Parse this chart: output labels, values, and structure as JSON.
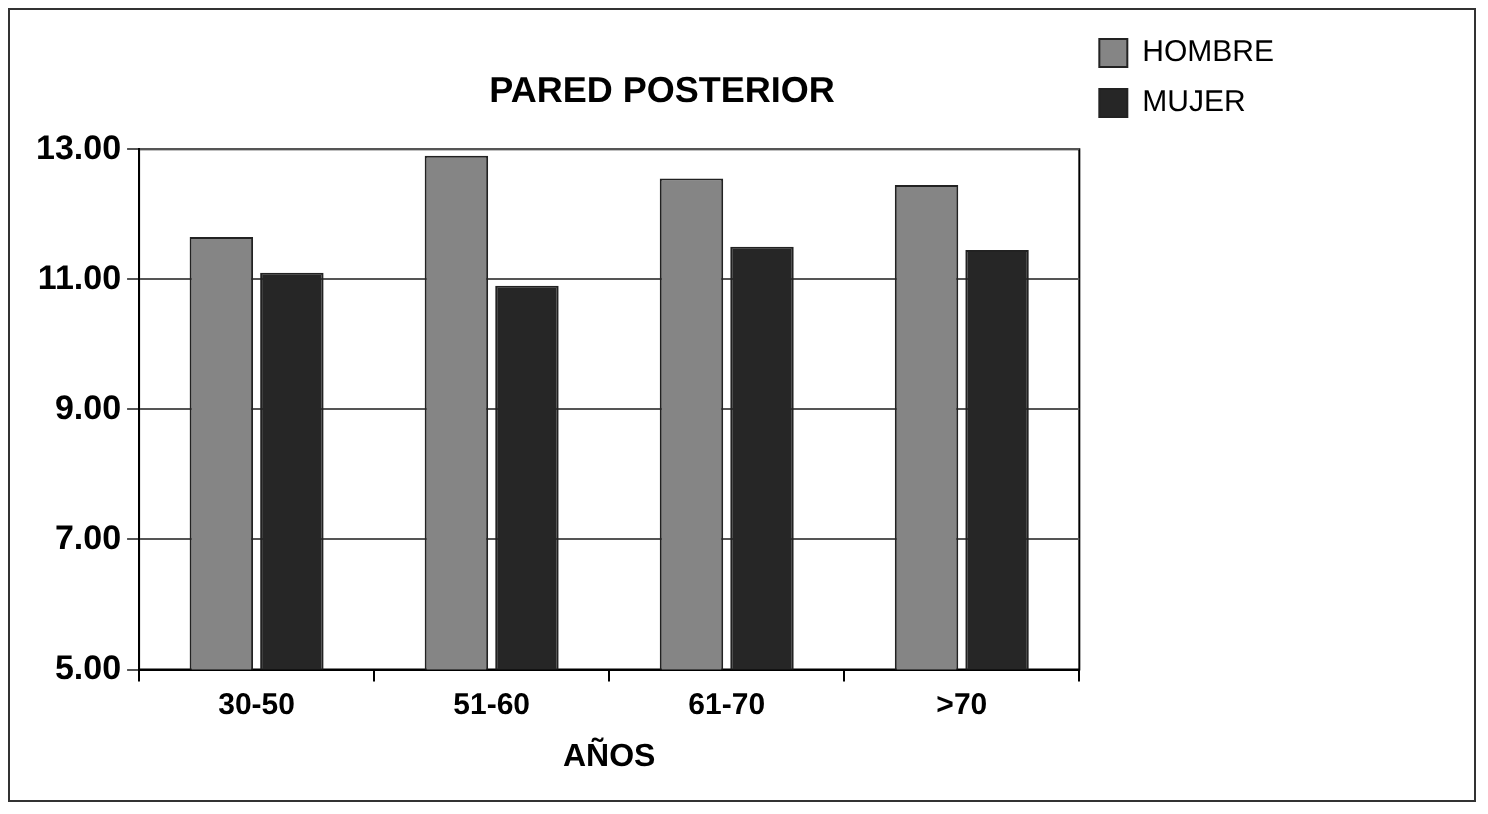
{
  "chart_data": {
    "type": "bar",
    "title": "PARED POSTERIOR",
    "xlabel": "AÑOS",
    "categories": [
      "30-50",
      "51-60",
      "61-70",
      ">70"
    ],
    "series": [
      {
        "name": "HOMBRE",
        "color": "#858585",
        "values": [
          11.65,
          12.9,
          12.55,
          12.45
        ]
      },
      {
        "name": "MUJER",
        "color": "#262626",
        "values": [
          11.1,
          10.9,
          11.5,
          11.45
        ]
      }
    ],
    "ylim": [
      5,
      13
    ],
    "yticks": [
      {
        "value": 5,
        "label": "5.00"
      },
      {
        "value": 7,
        "label": "7.00"
      },
      {
        "value": 9,
        "label": "9.00"
      },
      {
        "value": 11,
        "label": "11.00"
      },
      {
        "value": 13,
        "label": "13.00"
      }
    ],
    "grid": "y",
    "legend": "top right"
  }
}
